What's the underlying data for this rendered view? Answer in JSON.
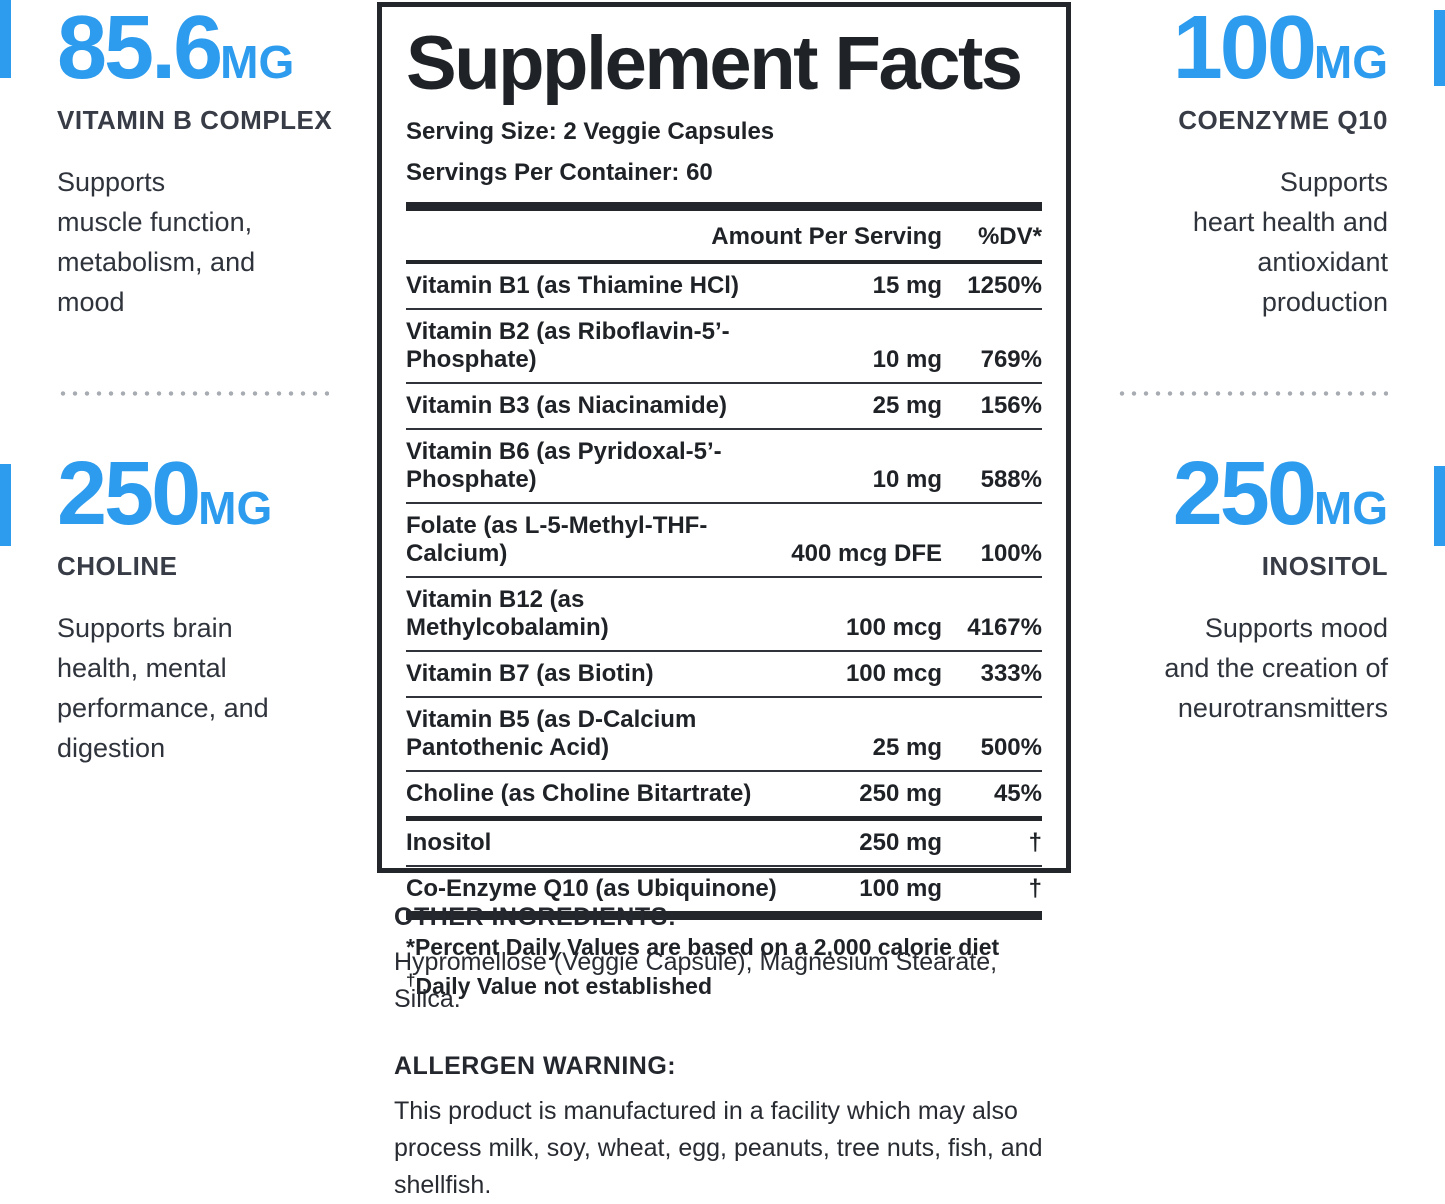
{
  "accent_color": "#2d9cee",
  "sides": {
    "left": {
      "top": {
        "value": "85.6",
        "unit": "MG",
        "name": "VITAMIN B COMPLEX",
        "description_lines": [
          "Supports",
          "muscle function,",
          "metabolism, and",
          "mood"
        ]
      },
      "bottom": {
        "value": "250",
        "unit": "MG",
        "name": "CHOLINE",
        "description_lines": [
          "Supports brain",
          "health, mental",
          "performance, and",
          "digestion"
        ]
      }
    },
    "right": {
      "top": {
        "value": "100",
        "unit": "MG",
        "name": "COENZYME Q10",
        "description_lines": [
          "Supports",
          "heart health and",
          "antioxidant",
          "production"
        ]
      },
      "bottom": {
        "value": "250",
        "unit": "MG",
        "name": "INOSITOL",
        "description_lines": [
          "Supports mood",
          "and the creation of",
          "neurotransmitters"
        ]
      }
    }
  },
  "panel": {
    "title": "Supplement Facts",
    "serving_size": "Serving Size: 2 Veggie Capsules",
    "servings_per_container": "Servings Per Container: 60",
    "header": {
      "amount": "Amount Per Serving",
      "dv": "%DV*"
    },
    "rows": [
      {
        "label": "Vitamin B1 (as Thiamine HCl)",
        "amount": "15 mg",
        "dv": "1250%",
        "rule": "thin"
      },
      {
        "label": "Vitamin B2 (as Riboflavin-5’-Phosphate)",
        "amount": "10 mg",
        "dv": "769%",
        "rule": "thin"
      },
      {
        "label": "Vitamin B3 (as Niacinamide)",
        "amount": "25 mg",
        "dv": "156%",
        "rule": "thin"
      },
      {
        "label": "Vitamin B6 (as Pyridoxal-5’-Phosphate)",
        "amount": "10 mg",
        "dv": "588%",
        "rule": "thin"
      },
      {
        "label": "Folate (as L-5-Methyl-THF-Calcium)",
        "amount": "400 mcg DFE",
        "dv": "100%",
        "rule": "thin"
      },
      {
        "label": "Vitamin B12 (as Methylcobalamin)",
        "amount": "100 mcg",
        "dv": "4167%",
        "rule": "thin"
      },
      {
        "label": "Vitamin B7 (as Biotin)",
        "amount": "100 mcg",
        "dv": "333%",
        "rule": "thin"
      },
      {
        "label": [
          "Vitamin B5 (as D-Calcium",
          "Pantothenic Acid)"
        ],
        "amount": "25 mg",
        "dv": "500%",
        "rule": "thin"
      },
      {
        "label": "Choline (as Choline Bitartrate)",
        "amount": "250 mg",
        "dv": "45%",
        "rule": "medium"
      },
      {
        "label": "Inositol",
        "amount": "250 mg",
        "dv": "†",
        "rule": "thin"
      },
      {
        "label": "Co-Enzyme Q10 (as Ubiquinone)",
        "amount": "100 mg",
        "dv": "†",
        "rule": "thick"
      }
    ],
    "footnote1": "*Percent Daily Values are based on a 2,000 calorie diet",
    "footnote2_symbol": "†",
    "footnote2": "Daily Value not established"
  },
  "below": {
    "other_ingredients_heading": "OTHER INGREDIENTS:",
    "other_ingredients_text": "Hypromellose (Veggie Capsule), Magnesium Stearate, Silica.",
    "allergen_heading": "ALLERGEN WARNING:",
    "allergen_text": "This product is manufactured in a facility which may also process milk, soy, wheat, egg, peanuts, tree nuts, fish, and shellfish."
  }
}
